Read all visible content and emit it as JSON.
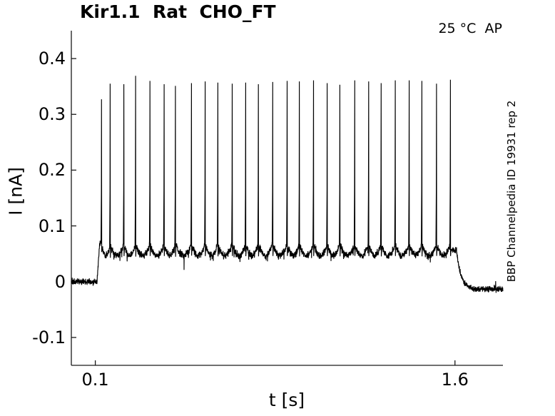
{
  "chart_data": {
    "type": "line",
    "title": "Kir1.1  Rat  CHO_FT",
    "annotation": "25 °C  AP",
    "side_label": "BBP Channelpedia ID 19931 rep 2",
    "xlabel": "t [s]",
    "ylabel": "I [nA]",
    "xlim": [
      0,
      1.8
    ],
    "ylim": [
      -0.15,
      0.45
    ],
    "xticks": [
      {
        "v": 0.1,
        "label": "0.1"
      },
      {
        "v": 1.6,
        "label": "1.6"
      }
    ],
    "yticks": [
      {
        "v": -0.1,
        "label": "-0.1"
      },
      {
        "v": 0,
        "label": "0"
      },
      {
        "v": 0.1,
        "label": "0.1"
      },
      {
        "v": 0.2,
        "label": "0.2"
      },
      {
        "v": 0.3,
        "label": "0.3"
      },
      {
        "v": 0.4,
        "label": "0.4"
      }
    ],
    "grid": false,
    "legend": null,
    "colors": {
      "trace": "#000000",
      "axis": "#1a1a1a",
      "text": "#000000",
      "background": "#ffffff"
    },
    "signal": {
      "description": "whole-cell current trace: 0 nA holding, step to ~0.06 nA plateau with 27 fast spikes to ~0.36 nA between t=0.1 and t=1.6 s, then return to ~-0.013 nA",
      "baseline_pre": {
        "t_start": 0.0,
        "t_end": 0.107,
        "level": 0.0,
        "noise": 0.0045
      },
      "rise": {
        "t_start": 0.107,
        "t_end": 0.118
      },
      "plateau": {
        "t_start": 0.118,
        "t_end": 1.607,
        "level_edge": 0.069,
        "dip_depth": 0.022,
        "noise": 0.005
      },
      "decay": {
        "t_start": 1.607,
        "t_end": 1.667,
        "tau": 0.018
      },
      "baseline_post": {
        "t_start": 1.667,
        "t_end": 1.8,
        "level": -0.013,
        "noise": 0.0045
      },
      "spike_width_s": 0.0045,
      "anomaly_dip": {
        "t": 0.47,
        "value": 0.021
      },
      "spikes": [
        {
          "t": 0.126,
          "peak": 0.327
        },
        {
          "t": 0.162,
          "peak": 0.355
        },
        {
          "t": 0.219,
          "peak": 0.354
        },
        {
          "t": 0.268,
          "peak": 0.369
        },
        {
          "t": 0.328,
          "peak": 0.36
        },
        {
          "t": 0.387,
          "peak": 0.354
        },
        {
          "t": 0.434,
          "peak": 0.351
        },
        {
          "t": 0.501,
          "peak": 0.356
        },
        {
          "t": 0.558,
          "peak": 0.359
        },
        {
          "t": 0.611,
          "peak": 0.357
        },
        {
          "t": 0.671,
          "peak": 0.355
        },
        {
          "t": 0.727,
          "peak": 0.357
        },
        {
          "t": 0.78,
          "peak": 0.354
        },
        {
          "t": 0.84,
          "peak": 0.358
        },
        {
          "t": 0.9,
          "peak": 0.36
        },
        {
          "t": 0.951,
          "peak": 0.359
        },
        {
          "t": 1.01,
          "peak": 0.361
        },
        {
          "t": 1.067,
          "peak": 0.356
        },
        {
          "t": 1.12,
          "peak": 0.353
        },
        {
          "t": 1.182,
          "peak": 0.361
        },
        {
          "t": 1.24,
          "peak": 0.359
        },
        {
          "t": 1.292,
          "peak": 0.356
        },
        {
          "t": 1.351,
          "peak": 0.361
        },
        {
          "t": 1.409,
          "peak": 0.361
        },
        {
          "t": 1.462,
          "peak": 0.36
        },
        {
          "t": 1.523,
          "peak": 0.355
        },
        {
          "t": 1.581,
          "peak": 0.362
        }
      ]
    }
  }
}
